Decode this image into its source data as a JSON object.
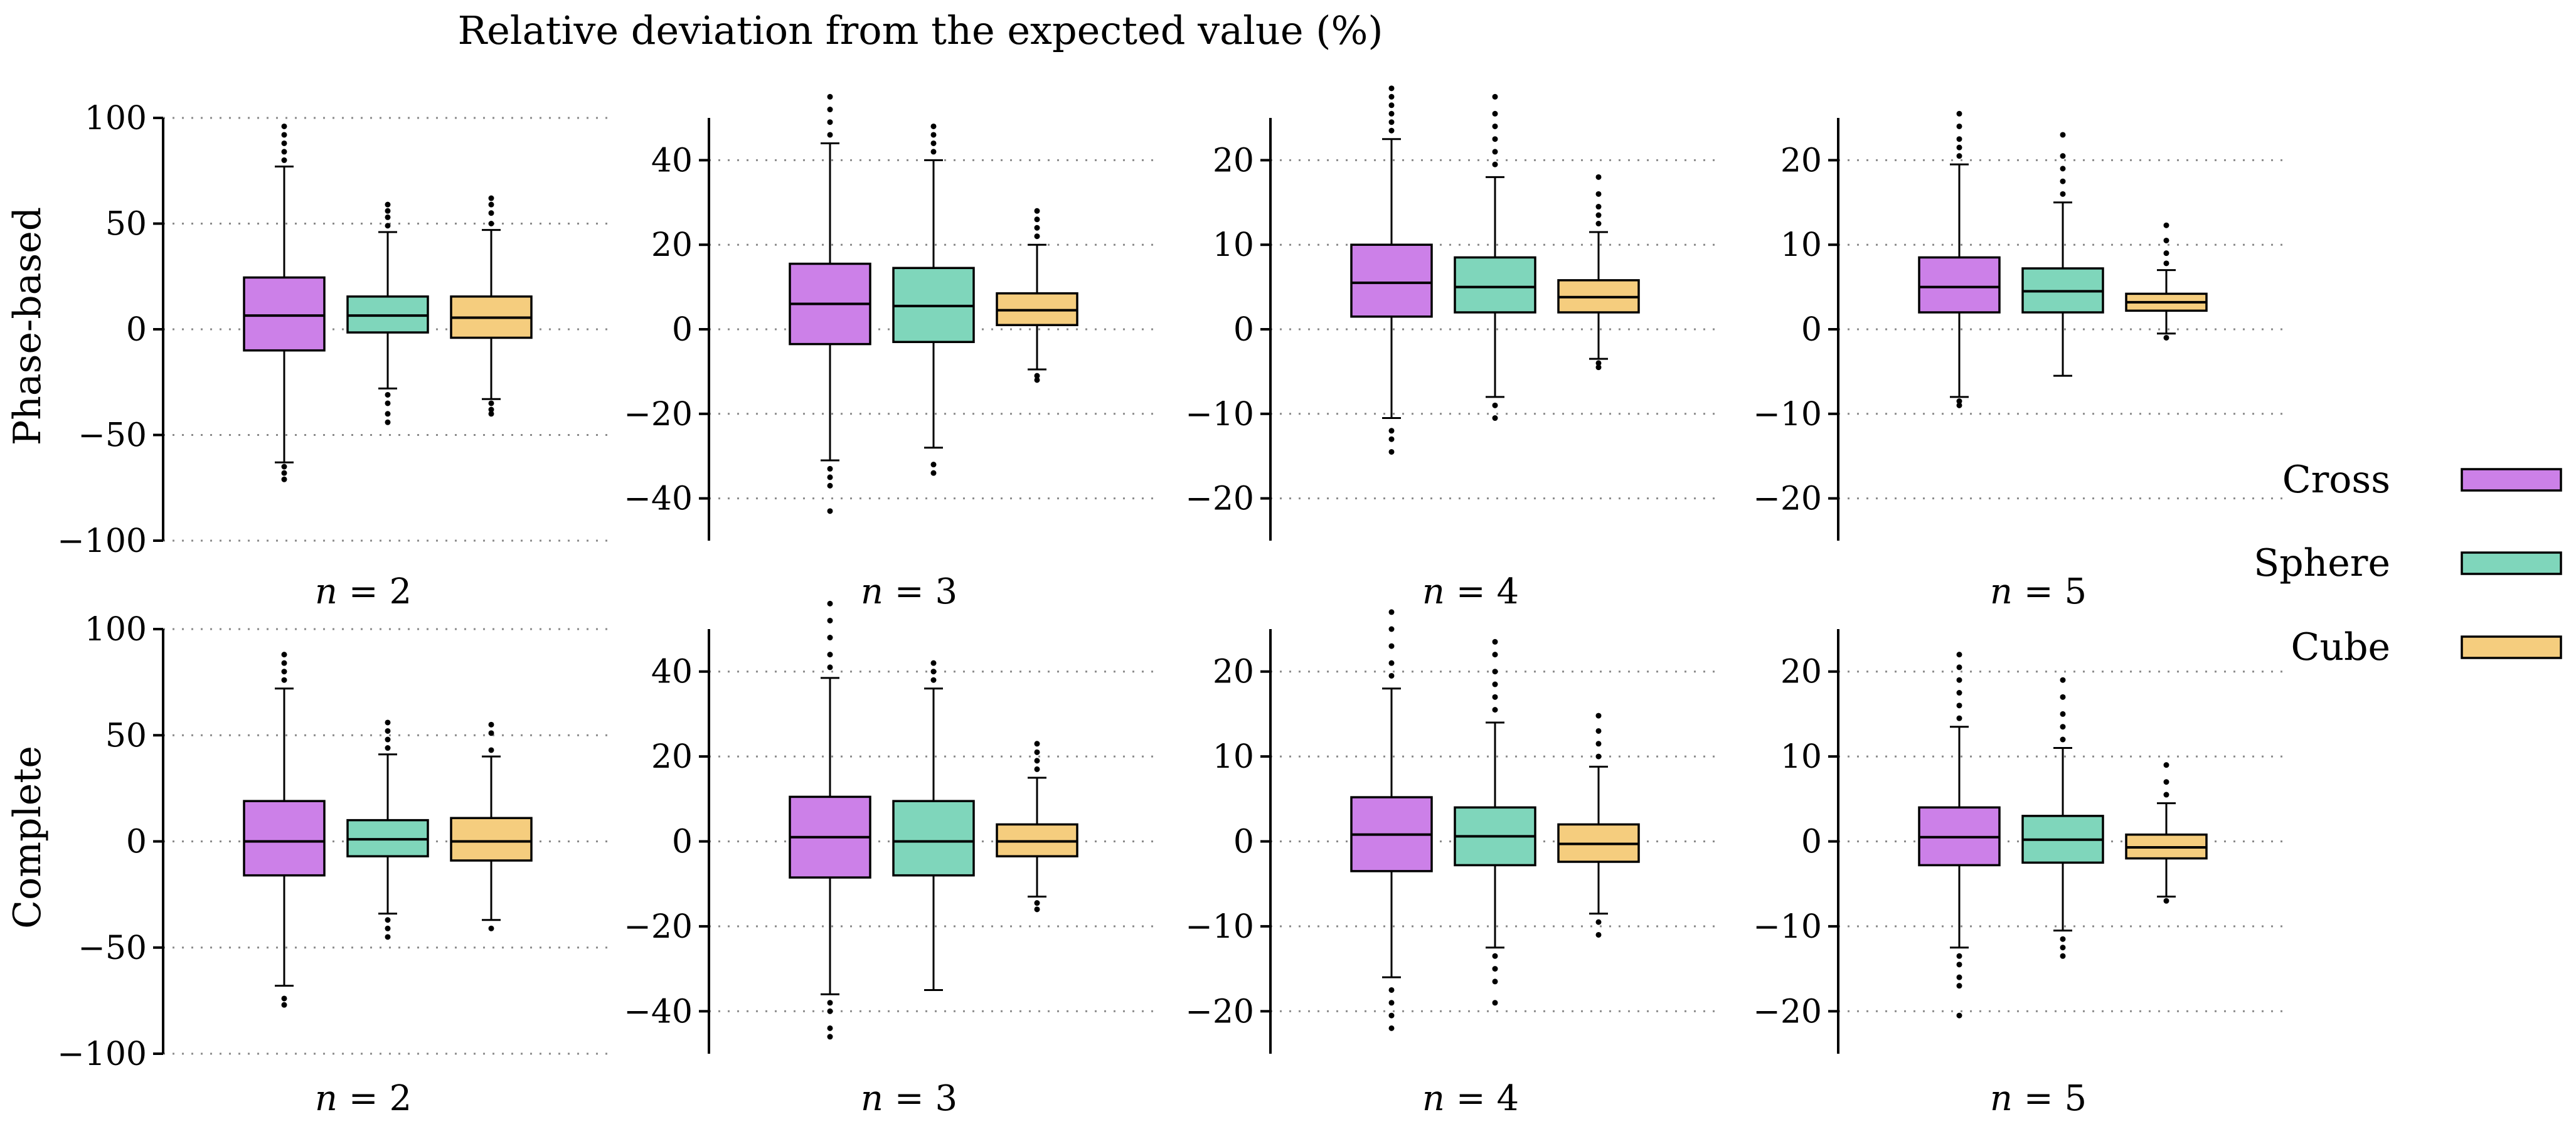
{
  "title": "Relative deviation from the expected value (%)",
  "colors": {
    "Cross": "#cc80e8",
    "Sphere": "#7fd6bb",
    "Cube": "#f5cd7e"
  },
  "legend": [
    "Cross",
    "Sphere",
    "Cube"
  ],
  "chart_data": {
    "type": "boxplot",
    "rows": [
      "Phase-based",
      "Complete"
    ],
    "panels": [
      {
        "row": "Phase-based",
        "label": "n = 2",
        "ylim": [
          -100,
          100
        ],
        "yticks": [
          -100,
          -50,
          0,
          50,
          100
        ],
        "series": [
          {
            "name": "Cross",
            "whisker_low": -63,
            "q1": -10,
            "median": 6.5,
            "q3": 24.5,
            "whisker_high": 77,
            "outliers_low": [
              -65,
              -68,
              -71
            ],
            "outliers_high": [
              80,
              84,
              88,
              92,
              96
            ]
          },
          {
            "name": "Sphere",
            "whisker_low": -28,
            "q1": -1.5,
            "median": 6.5,
            "q3": 15.5,
            "whisker_high": 46,
            "outliers_low": [
              -31,
              -35,
              -40,
              -44
            ],
            "outliers_high": [
              49,
              53,
              56,
              59
            ]
          },
          {
            "name": "Cube",
            "whisker_low": -33,
            "q1": -4,
            "median": 5.5,
            "q3": 15.5,
            "whisker_high": 47,
            "outliers_low": [
              -35,
              -38,
              -40
            ],
            "outliers_high": [
              50,
              55,
              59,
              62
            ]
          }
        ]
      },
      {
        "row": "Phase-based",
        "label": "n = 3",
        "ylim": [
          -50,
          50
        ],
        "yticks": [
          -40,
          -20,
          0,
          20,
          40
        ],
        "series": [
          {
            "name": "Cross",
            "whisker_low": -31,
            "q1": -3.5,
            "median": 6,
            "q3": 15.5,
            "whisker_high": 44,
            "outliers_low": [
              -33,
              -35,
              -37,
              -43
            ],
            "outliers_high": [
              46,
              49,
              52,
              55
            ]
          },
          {
            "name": "Sphere",
            "whisker_low": -28,
            "q1": -3,
            "median": 5.5,
            "q3": 14.5,
            "whisker_high": 40,
            "outliers_low": [
              -32,
              -34
            ],
            "outliers_high": [
              42,
              44,
              46,
              48
            ]
          },
          {
            "name": "Cube",
            "whisker_low": -9.5,
            "q1": 1,
            "median": 4.5,
            "q3": 8.5,
            "whisker_high": 20,
            "outliers_low": [
              -11,
              -12
            ],
            "outliers_high": [
              22,
              24,
              26,
              28
            ]
          }
        ]
      },
      {
        "row": "Phase-based",
        "label": "n = 4",
        "ylim": [
          -25,
          25
        ],
        "yticks": [
          -20,
          -10,
          0,
          10,
          20
        ],
        "series": [
          {
            "name": "Cross",
            "whisker_low": -10.5,
            "q1": 1.5,
            "median": 5.5,
            "q3": 10,
            "whisker_high": 22.5,
            "outliers_low": [
              -12,
              -13,
              -14.5
            ],
            "outliers_high": [
              23.5,
              24.5,
              25.5,
              26.5,
              27.5,
              28.5
            ]
          },
          {
            "name": "Sphere",
            "whisker_low": -8,
            "q1": 2,
            "median": 5,
            "q3": 8.5,
            "whisker_high": 18,
            "outliers_low": [
              -9,
              -10.5
            ],
            "outliers_high": [
              19.5,
              21,
              22.5,
              24,
              25.5,
              27.5
            ]
          },
          {
            "name": "Cube",
            "whisker_low": -3.5,
            "q1": 2,
            "median": 3.8,
            "q3": 5.8,
            "whisker_high": 11.5,
            "outliers_low": [
              -4,
              -4.5
            ],
            "outliers_high": [
              12.5,
              13.5,
              14.5,
              16,
              18
            ]
          }
        ]
      },
      {
        "row": "Phase-based",
        "label": "n = 5",
        "ylim": [
          -25,
          25
        ],
        "yticks": [
          -20,
          -10,
          0,
          10,
          20
        ],
        "series": [
          {
            "name": "Cross",
            "whisker_low": -8,
            "q1": 2,
            "median": 5,
            "q3": 8.5,
            "whisker_high": 19.5,
            "outliers_low": [
              -8.5,
              -9
            ],
            "outliers_high": [
              20.5,
              21.5,
              22.5,
              24,
              25.5
            ]
          },
          {
            "name": "Sphere",
            "whisker_low": -5.5,
            "q1": 2,
            "median": 4.5,
            "q3": 7.2,
            "whisker_high": 15,
            "outliers_low": [],
            "outliers_high": [
              16,
              17.5,
              19,
              20.5,
              23
            ]
          },
          {
            "name": "Cube",
            "whisker_low": -0.5,
            "q1": 2.2,
            "median": 3.2,
            "q3": 4.2,
            "whisker_high": 7,
            "outliers_low": [
              -1
            ],
            "outliers_high": [
              7.8,
              9,
              10.5,
              12.3
            ]
          }
        ]
      },
      {
        "row": "Complete",
        "label": "n = 2",
        "ylim": [
          -100,
          100
        ],
        "yticks": [
          -100,
          -50,
          0,
          50,
          100
        ],
        "series": [
          {
            "name": "Cross",
            "whisker_low": -68,
            "q1": -16,
            "median": 0,
            "q3": 19,
            "whisker_high": 72,
            "outliers_low": [
              -74,
              -77
            ],
            "outliers_high": [
              76,
              80,
              84,
              88
            ]
          },
          {
            "name": "Sphere",
            "whisker_low": -34,
            "q1": -7,
            "median": 1,
            "q3": 10,
            "whisker_high": 41,
            "outliers_low": [
              -37,
              -41,
              -45
            ],
            "outliers_high": [
              44,
              48,
              52,
              56
            ]
          },
          {
            "name": "Cube",
            "whisker_low": -37,
            "q1": -9,
            "median": 0,
            "q3": 11,
            "whisker_high": 40,
            "outliers_low": [
              -41
            ],
            "outliers_high": [
              43,
              51,
              55
            ]
          }
        ]
      },
      {
        "row": "Complete",
        "label": "n = 3",
        "ylim": [
          -50,
          50
        ],
        "yticks": [
          -40,
          -20,
          0,
          20,
          40
        ],
        "series": [
          {
            "name": "Cross",
            "whisker_low": -36,
            "q1": -8.5,
            "median": 1,
            "q3": 10.5,
            "whisker_high": 38.5,
            "outliers_low": [
              -38,
              -40,
              -44,
              -46
            ],
            "outliers_high": [
              41,
              44,
              48,
              52,
              56
            ]
          },
          {
            "name": "Sphere",
            "whisker_low": -35,
            "q1": -8,
            "median": 0,
            "q3": 9.5,
            "whisker_high": 36,
            "outliers_low": [],
            "outliers_high": [
              38,
              40,
              42
            ]
          },
          {
            "name": "Cube",
            "whisker_low": -13,
            "q1": -3.5,
            "median": 0,
            "q3": 4,
            "whisker_high": 15,
            "outliers_low": [
              -14.5,
              -16
            ],
            "outliers_high": [
              17,
              19,
              21,
              23
            ]
          }
        ]
      },
      {
        "row": "Complete",
        "label": "n = 4",
        "ylim": [
          -25,
          25
        ],
        "yticks": [
          -20,
          -10,
          0,
          10,
          20
        ],
        "series": [
          {
            "name": "Cross",
            "whisker_low": -16,
            "q1": -3.5,
            "median": 0.8,
            "q3": 5.2,
            "whisker_high": 18,
            "outliers_low": [
              -17.5,
              -19,
              -20.5,
              -22
            ],
            "outliers_high": [
              19.5,
              21,
              23,
              25,
              27
            ]
          },
          {
            "name": "Sphere",
            "whisker_low": -12.5,
            "q1": -2.8,
            "median": 0.6,
            "q3": 4,
            "whisker_high": 14,
            "outliers_low": [
              -13.5,
              -15,
              -16.5,
              -19
            ],
            "outliers_high": [
              15.5,
              17,
              18.5,
              20,
              22,
              23.5
            ]
          },
          {
            "name": "Cube",
            "whisker_low": -8.5,
            "q1": -2.4,
            "median": -0.3,
            "q3": 2,
            "whisker_high": 8.8,
            "outliers_low": [
              -9.5,
              -11
            ],
            "outliers_high": [
              10,
              11.5,
              13,
              14.8
            ]
          }
        ]
      },
      {
        "row": "Complete",
        "label": "n = 5",
        "ylim": [
          -25,
          25
        ],
        "yticks": [
          -20,
          -10,
          0,
          10,
          20
        ],
        "series": [
          {
            "name": "Cross",
            "whisker_low": -12.5,
            "q1": -2.8,
            "median": 0.5,
            "q3": 4,
            "whisker_high": 13.5,
            "outliers_low": [
              -13.5,
              -14.5,
              -16,
              -17,
              -20.5
            ],
            "outliers_high": [
              14.5,
              16,
              17.5,
              19,
              20.5,
              22
            ]
          },
          {
            "name": "Sphere",
            "whisker_low": -10.5,
            "q1": -2.5,
            "median": 0.2,
            "q3": 3,
            "whisker_high": 11,
            "outliers_low": [
              -11.5,
              -12.5,
              -13.5
            ],
            "outliers_high": [
              12,
              13.5,
              15,
              17,
              19
            ]
          },
          {
            "name": "Cube",
            "whisker_low": -6.5,
            "q1": -2,
            "median": -0.7,
            "q3": 0.8,
            "whisker_high": 4.5,
            "outliers_low": [
              -7
            ],
            "outliers_high": [
              5.5,
              7,
              9
            ]
          }
        ]
      }
    ]
  }
}
